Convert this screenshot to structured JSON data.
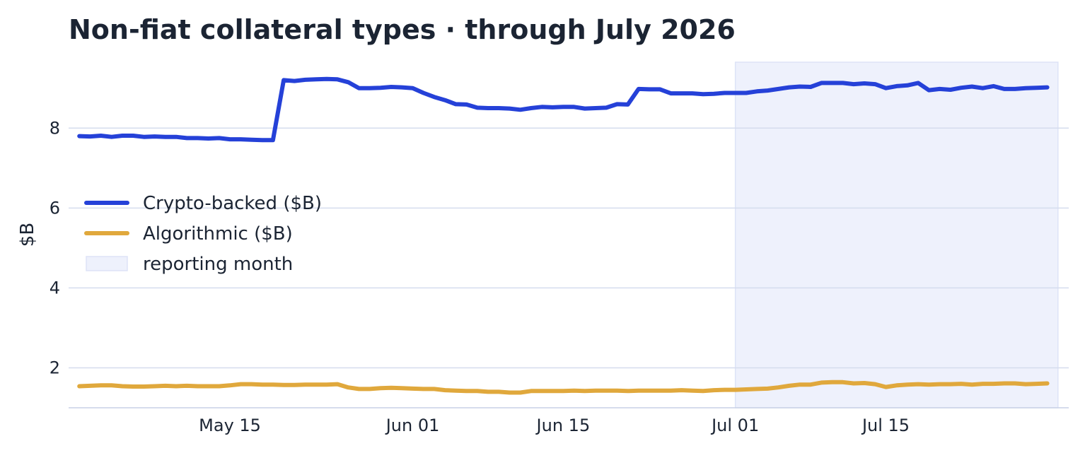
{
  "chart_data": {
    "type": "line",
    "title": "Non-fiat collateral types · through July 2026",
    "xlabel": "",
    "ylabel": "$B",
    "x_start": "2026-05-01",
    "x_end": "2026-07-31",
    "xlim": [
      "2026-04-30",
      "2026-08-01"
    ],
    "ylim": [
      1.0,
      9.65
    ],
    "y_ticks": [
      2,
      4,
      6,
      8
    ],
    "y_tick_labels": [
      "2",
      "4",
      "6",
      "8"
    ],
    "x_ticks": [
      "2026-05-15",
      "2026-06-01",
      "2026-06-15",
      "2026-07-01",
      "2026-07-15"
    ],
    "x_tick_labels": [
      "May 15",
      "Jun 01",
      "Jun 15",
      "Jul 01",
      "Jul 15"
    ],
    "grid": "horizontal",
    "legend_position": "center-left",
    "highlight": {
      "label": "reporting month",
      "start": "2026-07-01",
      "end": "2026-07-31",
      "color": "#eef1fc"
    },
    "series": [
      {
        "name": "Crypto-backed ($B)",
        "color": "#2541d8",
        "values": [
          7.8,
          7.79,
          7.81,
          7.78,
          7.81,
          7.81,
          7.78,
          7.79,
          7.78,
          7.78,
          7.75,
          7.75,
          7.74,
          7.75,
          7.72,
          7.72,
          7.71,
          7.7,
          7.7,
          9.2,
          9.18,
          9.21,
          9.22,
          9.23,
          9.22,
          9.15,
          9.0,
          9.0,
          9.01,
          9.03,
          9.02,
          9.0,
          8.88,
          8.78,
          8.7,
          8.6,
          8.59,
          8.51,
          8.5,
          8.5,
          8.49,
          8.46,
          8.5,
          8.53,
          8.52,
          8.53,
          8.53,
          8.49,
          8.5,
          8.51,
          8.6,
          8.59,
          8.98,
          8.97,
          8.97,
          8.87,
          8.87,
          8.87,
          8.85,
          8.86,
          8.88,
          8.88,
          8.88,
          8.92,
          8.94,
          8.98,
          9.02,
          9.04,
          9.03,
          9.13,
          9.13,
          9.13,
          9.1,
          9.12,
          9.1,
          9.0,
          9.05,
          9.07,
          9.13,
          8.95,
          8.98,
          8.96,
          9.01,
          9.04,
          9.0,
          9.05,
          8.98,
          8.98,
          9.0,
          9.01,
          9.02
        ]
      },
      {
        "name": "Algorithmic ($B)",
        "color": "#e0a83c",
        "values": [
          1.54,
          1.55,
          1.56,
          1.56,
          1.54,
          1.53,
          1.53,
          1.54,
          1.55,
          1.54,
          1.55,
          1.54,
          1.54,
          1.54,
          1.56,
          1.59,
          1.59,
          1.58,
          1.58,
          1.57,
          1.57,
          1.58,
          1.58,
          1.58,
          1.59,
          1.51,
          1.47,
          1.47,
          1.49,
          1.5,
          1.49,
          1.48,
          1.47,
          1.47,
          1.44,
          1.43,
          1.42,
          1.42,
          1.4,
          1.4,
          1.38,
          1.38,
          1.42,
          1.42,
          1.42,
          1.42,
          1.43,
          1.42,
          1.43,
          1.43,
          1.43,
          1.42,
          1.43,
          1.43,
          1.43,
          1.43,
          1.44,
          1.43,
          1.42,
          1.44,
          1.45,
          1.45,
          1.46,
          1.47,
          1.48,
          1.51,
          1.55,
          1.58,
          1.58,
          1.63,
          1.64,
          1.64,
          1.61,
          1.62,
          1.59,
          1.52,
          1.56,
          1.58,
          1.59,
          1.58,
          1.59,
          1.59,
          1.6,
          1.58,
          1.6,
          1.6,
          1.61,
          1.61,
          1.59,
          1.6,
          1.61
        ]
      }
    ]
  }
}
